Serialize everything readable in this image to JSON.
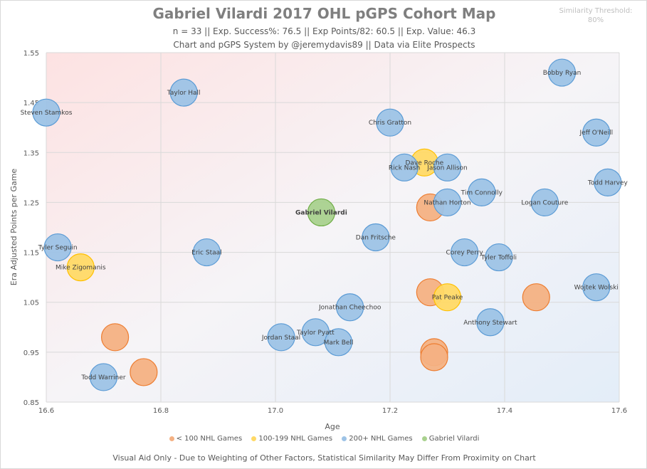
{
  "chart_data": {
    "type": "bubble",
    "title": "Gabriel Vilardi 2017 OHL pGPS Cohort Map",
    "subtitle": "n = 33 || Exp. Success%: 76.5 || Exp Points/82: 60.5 || Exp. Value: 46.3",
    "credit": "Chart and pGPS System by @jeremydavis89 || Data via Elite Prospects",
    "threshold_label": "Similarity Threshold:",
    "threshold_value": "80%",
    "xlabel": "Age",
    "ylabel": "Era Adjusted Points per Game",
    "xlim": [
      16.6,
      17.6
    ],
    "ylim": [
      0.85,
      1.55
    ],
    "xticks": [
      "16.6",
      "16.8",
      "17.0",
      "17.2",
      "17.4",
      "17.6"
    ],
    "yticks": [
      "1.55",
      "1.45",
      "1.35",
      "1.25",
      "1.15",
      "1.05",
      "0.95",
      "0.85"
    ],
    "grid": true,
    "legend_position": "bottom",
    "categories": [
      {
        "key": "lt100",
        "name": "< 100 NHL Games",
        "color": "#f4b183",
        "stroke": "#ed7d31"
      },
      {
        "key": "100to199",
        "name": "100-199 NHL Games",
        "color": "#ffd966",
        "stroke": "#ffc000"
      },
      {
        "key": "200plus",
        "name": "200+ NHL Games",
        "color": "#9dc3e6",
        "stroke": "#5b9bd5"
      },
      {
        "key": "subject",
        "name": "Gabriel Vilardi",
        "color": "#a9d18e",
        "stroke": "#70ad47"
      }
    ],
    "points": [
      {
        "name": "Steven Stamkos",
        "x": 16.6,
        "y": 1.43,
        "cat": "200plus"
      },
      {
        "name": "Taylor Hall",
        "x": 16.84,
        "y": 1.47,
        "cat": "200plus"
      },
      {
        "name": "Bobby Ryan",
        "x": 17.5,
        "y": 1.51,
        "cat": "200plus"
      },
      {
        "name": "Chris Gratton",
        "x": 17.2,
        "y": 1.41,
        "cat": "200plus"
      },
      {
        "name": "Jeff O'Neill",
        "x": 17.56,
        "y": 1.39,
        "cat": "200plus"
      },
      {
        "name": "Dave Roche",
        "x": 17.26,
        "y": 1.33,
        "cat": "100to199"
      },
      {
        "name": "Rick Nash",
        "x": 17.225,
        "y": 1.32,
        "cat": "200plus"
      },
      {
        "name": "Jason Allison",
        "x": 17.3,
        "y": 1.32,
        "cat": "200plus"
      },
      {
        "name": "Todd Harvey",
        "x": 17.58,
        "y": 1.29,
        "cat": "200plus"
      },
      {
        "name": "Tim Connolly",
        "x": 17.36,
        "y": 1.27,
        "cat": "200plus"
      },
      {
        "name": "",
        "x": 17.27,
        "y": 1.24,
        "cat": "lt100"
      },
      {
        "name": "Nathan Horton",
        "x": 17.3,
        "y": 1.25,
        "cat": "200plus"
      },
      {
        "name": "Logan Couture",
        "x": 17.47,
        "y": 1.25,
        "cat": "200plus"
      },
      {
        "name": "Gabriel Vilardi",
        "x": 17.08,
        "y": 1.23,
        "cat": "subject"
      },
      {
        "name": "Dan Fritsche",
        "x": 17.175,
        "y": 1.18,
        "cat": "200plus"
      },
      {
        "name": "Tyler Seguin",
        "x": 16.62,
        "y": 1.16,
        "cat": "200plus"
      },
      {
        "name": "Eric Staal",
        "x": 16.88,
        "y": 1.15,
        "cat": "200plus"
      },
      {
        "name": "Mike Zigomanis",
        "x": 16.66,
        "y": 1.12,
        "cat": "100to199"
      },
      {
        "name": "Corey Perry",
        "x": 17.33,
        "y": 1.15,
        "cat": "200plus"
      },
      {
        "name": "Tyler Toffoli",
        "x": 17.39,
        "y": 1.14,
        "cat": "200plus"
      },
      {
        "name": "Wojtek Wolski",
        "x": 17.56,
        "y": 1.08,
        "cat": "200plus"
      },
      {
        "name": "",
        "x": 17.27,
        "y": 1.07,
        "cat": "lt100"
      },
      {
        "name": "Pat Peake",
        "x": 17.3,
        "y": 1.06,
        "cat": "100to199"
      },
      {
        "name": "",
        "x": 17.455,
        "y": 1.06,
        "cat": "lt100"
      },
      {
        "name": "Jonathan Cheechoo",
        "x": 17.13,
        "y": 1.04,
        "cat": "200plus"
      },
      {
        "name": "Anthony Stewart",
        "x": 17.375,
        "y": 1.01,
        "cat": "200plus"
      },
      {
        "name": "",
        "x": 16.72,
        "y": 0.98,
        "cat": "lt100"
      },
      {
        "name": "Jordan Staal",
        "x": 17.01,
        "y": 0.98,
        "cat": "200plus"
      },
      {
        "name": "Taylor Pyatt",
        "x": 17.07,
        "y": 0.99,
        "cat": "200plus"
      },
      {
        "name": "Mark Bell",
        "x": 17.11,
        "y": 0.97,
        "cat": "200plus"
      },
      {
        "name": "",
        "x": 17.277,
        "y": 0.95,
        "cat": "lt100"
      },
      {
        "name": "",
        "x": 17.277,
        "y": 0.94,
        "cat": "lt100"
      },
      {
        "name": "",
        "x": 16.77,
        "y": 0.91,
        "cat": "lt100"
      },
      {
        "name": "Todd Warriner",
        "x": 16.7,
        "y": 0.9,
        "cat": "200plus"
      }
    ]
  },
  "legend": [
    "< 100 NHL Games",
    "100-199 NHL Games",
    "200+ NHL Games",
    "Gabriel Vilardi"
  ],
  "footer": "Visual Aid Only - Due to Weighting of Other Factors, Statistical Similarity May Differ From Proximity on Chart"
}
